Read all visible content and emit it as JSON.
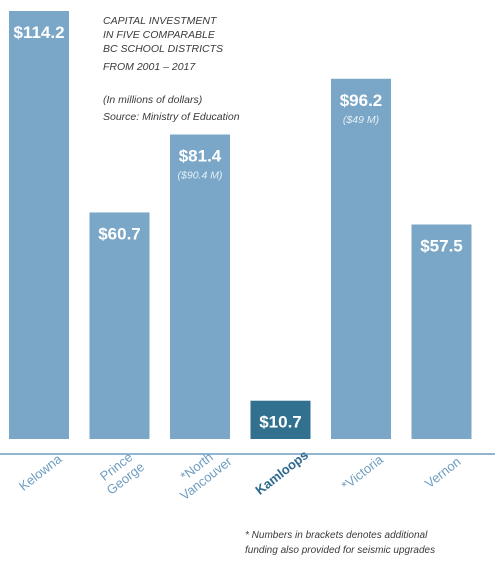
{
  "chart_data": {
    "type": "bar",
    "title_lines": [
      "CAPITAL INVESTMENT",
      "IN FIVE COMPARABLE",
      "BC SCHOOL DISTRICTS",
      "FROM 2001 – 2017"
    ],
    "subtitle_lines": [
      "(In millions of dollars)",
      "Source: Ministry of Education"
    ],
    "categories": [
      {
        "label_lines": [
          "Kelowna"
        ],
        "highlight": false
      },
      {
        "label_lines": [
          "Prince",
          "George"
        ],
        "highlight": false
      },
      {
        "label_lines": [
          "*North",
          "Vancouver"
        ],
        "highlight": false
      },
      {
        "label_lines": [
          "Kamloops"
        ],
        "highlight": true
      },
      {
        "label_lines": [
          "*Victoria"
        ],
        "highlight": false
      },
      {
        "label_lines": [
          "Vernon"
        ],
        "highlight": false
      }
    ],
    "values": [
      114.2,
      60.7,
      81.4,
      10.7,
      96.2,
      57.5
    ],
    "value_labels": [
      "$114.2",
      "$60.7",
      "$81.4",
      "$10.7",
      "$96.2",
      "$57.5"
    ],
    "secondary_labels": [
      "",
      "",
      "($90.4 M)",
      "",
      "($49 M)",
      ""
    ],
    "ylim": [
      0,
      114.2
    ],
    "colors": {
      "bar": "#7aa7c7",
      "highlight_bar": "#31708f",
      "label": "#6d9dc0",
      "highlight_label": "#2e6a8e",
      "baseline": "#6d9dc0"
    },
    "footnote_lines": [
      "* Numbers in brackets denotes additional",
      "funding also provided for seismic upgrades"
    ]
  }
}
